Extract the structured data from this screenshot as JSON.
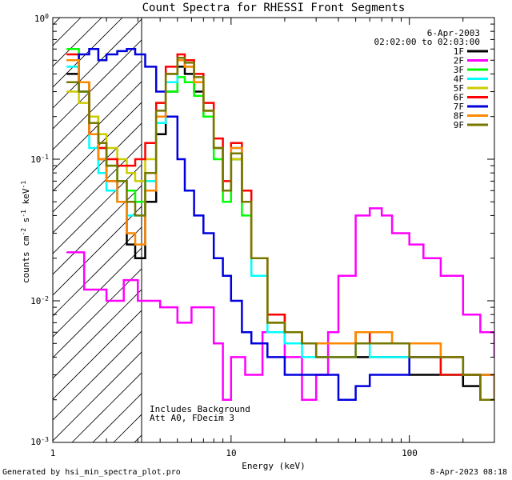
{
  "chart_data": {
    "type": "line",
    "title": "Count Spectra for RHESSI Front Segments",
    "xlabel": "Energy (keV)",
    "ylabel": "counts cm^-2 s^-1 keV^-1",
    "xscale": "log",
    "yscale": "log",
    "xlim": [
      1,
      300
    ],
    "ylim": [
      0.001,
      1
    ],
    "x_tick_labels": [
      "1",
      "10",
      "100"
    ],
    "y_tick_labels": [
      "10^0",
      "10^-1",
      "10^-2",
      "10^-3"
    ],
    "date": "6-Apr-2003",
    "time_range": "02:02:00 to 02:03:00",
    "annotations": [
      "Includes Background",
      "Att A0, FDecim 3"
    ],
    "hatched_region_keV": [
      1,
      3
    ],
    "series": [
      {
        "name": "1F",
        "color": "#000000",
        "x": [
          1.2,
          1.4,
          1.6,
          1.8,
          2.0,
          2.3,
          2.6,
          2.9,
          3.3,
          3.8,
          4.3,
          5.0,
          5.5,
          6.2,
          7.0,
          8.0,
          9.0,
          10.0,
          11.5,
          13.0,
          16.0,
          20.0,
          25.0,
          30.0,
          40.0,
          50.0,
          60.0,
          80.0,
          100.0,
          150.0,
          200.0,
          250.0,
          300.0
        ],
        "values": [
          0.4,
          0.3,
          0.15,
          0.1,
          0.07,
          0.05,
          0.025,
          0.02,
          0.05,
          0.15,
          0.3,
          0.45,
          0.4,
          0.3,
          0.2,
          0.12,
          0.06,
          0.1,
          0.05,
          0.02,
          0.008,
          0.006,
          0.005,
          0.004,
          0.004,
          0.004,
          0.004,
          0.004,
          0.003,
          0.003,
          0.0025,
          0.002,
          0.002
        ]
      },
      {
        "name": "2F",
        "color": "#ff00ff",
        "x": [
          1.2,
          1.5,
          2.0,
          2.5,
          3.0,
          4.0,
          5.0,
          6.0,
          8.0,
          9.0,
          10.0,
          12.0,
          15.0,
          20.0,
          25.0,
          30.0,
          35.0,
          40.0,
          50.0,
          60.0,
          70.0,
          80.0,
          100.0,
          120.0,
          150.0,
          200.0,
          250.0,
          300.0
        ],
        "values": [
          0.022,
          0.012,
          0.01,
          0.014,
          0.01,
          0.009,
          0.007,
          0.009,
          0.005,
          0.002,
          0.004,
          0.003,
          0.006,
          0.004,
          0.002,
          0.003,
          0.006,
          0.015,
          0.04,
          0.045,
          0.04,
          0.03,
          0.025,
          0.02,
          0.015,
          0.008,
          0.006,
          0.004
        ]
      },
      {
        "name": "3F",
        "color": "#00ff00",
        "x": [
          1.2,
          1.4,
          1.6,
          1.8,
          2.0,
          2.3,
          2.6,
          2.9,
          3.3,
          3.8,
          4.3,
          5.0,
          5.5,
          6.2,
          7.0,
          8.0,
          9.0,
          10.0,
          11.5,
          13.0,
          16.0,
          20.0,
          25.0,
          30.0,
          40.0,
          50.0,
          60.0,
          80.0,
          100.0,
          150.0,
          200.0,
          250.0,
          300.0
        ],
        "values": [
          0.6,
          0.35,
          0.2,
          0.12,
          0.09,
          0.07,
          0.06,
          0.05,
          0.07,
          0.2,
          0.3,
          0.38,
          0.35,
          0.28,
          0.2,
          0.1,
          0.05,
          0.1,
          0.04,
          0.015,
          0.007,
          0.006,
          0.005,
          0.005,
          0.005,
          0.006,
          0.005,
          0.005,
          0.004,
          0.003,
          0.003,
          0.002,
          0.002
        ]
      },
      {
        "name": "4F",
        "color": "#00ffff",
        "x": [
          1.2,
          1.4,
          1.6,
          1.8,
          2.0,
          2.3,
          2.6,
          2.9,
          3.3,
          3.8,
          4.3,
          5.0,
          5.5,
          6.2,
          7.0,
          8.0,
          9.0,
          10.0,
          11.5,
          13.0,
          16.0,
          20.0,
          25.0,
          30.0,
          40.0,
          50.0,
          60.0,
          80.0,
          100.0,
          150.0,
          200.0,
          250.0,
          300.0
        ],
        "values": [
          0.45,
          0.3,
          0.12,
          0.08,
          0.06,
          0.05,
          0.04,
          0.04,
          0.07,
          0.18,
          0.35,
          0.5,
          0.45,
          0.35,
          0.22,
          0.12,
          0.06,
          0.12,
          0.05,
          0.015,
          0.006,
          0.005,
          0.004,
          0.004,
          0.004,
          0.005,
          0.004,
          0.004,
          0.004,
          0.003,
          0.003,
          0.002,
          0.002
        ]
      },
      {
        "name": "5F",
        "color": "#cccc00",
        "x": [
          1.2,
          1.4,
          1.6,
          1.8,
          2.0,
          2.3,
          2.6,
          2.9,
          3.3,
          3.8,
          4.3,
          5.0,
          5.5,
          6.2,
          7.0,
          8.0,
          9.0,
          10.0,
          11.5,
          13.0,
          16.0,
          20.0,
          25.0,
          30.0,
          40.0,
          50.0,
          60.0,
          80.0,
          100.0,
          150.0,
          200.0,
          250.0,
          300.0
        ],
        "values": [
          0.3,
          0.25,
          0.2,
          0.15,
          0.12,
          0.1,
          0.08,
          0.07,
          0.1,
          0.25,
          0.4,
          0.5,
          0.45,
          0.35,
          0.22,
          0.12,
          0.06,
          0.1,
          0.05,
          0.02,
          0.008,
          0.006,
          0.005,
          0.005,
          0.005,
          0.006,
          0.006,
          0.005,
          0.005,
          0.004,
          0.003,
          0.003,
          0.002
        ]
      },
      {
        "name": "6F",
        "color": "#ff0000",
        "x": [
          1.2,
          1.4,
          1.6,
          1.8,
          2.0,
          2.3,
          2.6,
          2.9,
          3.3,
          3.8,
          4.3,
          5.0,
          5.5,
          6.2,
          7.0,
          8.0,
          9.0,
          10.0,
          11.5,
          13.0,
          16.0,
          20.0,
          25.0,
          30.0,
          40.0,
          50.0,
          60.0,
          80.0,
          100.0,
          150.0,
          200.0,
          250.0,
          300.0
        ],
        "values": [
          0.55,
          0.35,
          0.15,
          0.12,
          0.1,
          0.09,
          0.09,
          0.1,
          0.13,
          0.25,
          0.45,
          0.55,
          0.5,
          0.4,
          0.25,
          0.14,
          0.07,
          0.13,
          0.06,
          0.02,
          0.008,
          0.006,
          0.005,
          0.005,
          0.005,
          0.006,
          0.005,
          0.005,
          0.004,
          0.003,
          0.003,
          0.002,
          0.002
        ]
      },
      {
        "name": "7F",
        "color": "#0000dd",
        "x": [
          1.2,
          1.4,
          1.6,
          1.8,
          2.0,
          2.3,
          2.6,
          2.9,
          3.3,
          3.8,
          4.3,
          5.0,
          5.5,
          6.2,
          7.0,
          8.0,
          9.0,
          10.0,
          11.5,
          13.0,
          16.0,
          20.0,
          25.0,
          30.0,
          40.0,
          50.0,
          60.0,
          80.0,
          100.0,
          150.0,
          200.0,
          250.0,
          300.0
        ],
        "values": [
          0.35,
          0.55,
          0.6,
          0.5,
          0.55,
          0.58,
          0.6,
          0.55,
          0.45,
          0.3,
          0.2,
          0.1,
          0.06,
          0.04,
          0.03,
          0.02,
          0.015,
          0.01,
          0.006,
          0.005,
          0.004,
          0.003,
          0.003,
          0.003,
          0.002,
          0.0025,
          0.003,
          0.003,
          0.004,
          0.004,
          0.003,
          0.003,
          0.002
        ]
      },
      {
        "name": "8F",
        "color": "#ff8800",
        "x": [
          1.2,
          1.4,
          1.6,
          1.8,
          2.0,
          2.3,
          2.6,
          2.9,
          3.3,
          3.8,
          4.3,
          5.0,
          5.5,
          6.2,
          7.0,
          8.0,
          9.0,
          10.0,
          11.5,
          13.0,
          16.0,
          20.0,
          25.0,
          30.0,
          40.0,
          50.0,
          60.0,
          80.0,
          100.0,
          150.0,
          200.0,
          250.0,
          300.0
        ],
        "values": [
          0.5,
          0.35,
          0.15,
          0.1,
          0.07,
          0.05,
          0.03,
          0.025,
          0.06,
          0.2,
          0.4,
          0.5,
          0.45,
          0.35,
          0.22,
          0.12,
          0.06,
          0.12,
          0.05,
          0.02,
          0.007,
          0.006,
          0.005,
          0.005,
          0.005,
          0.006,
          0.006,
          0.005,
          0.005,
          0.004,
          0.003,
          0.003,
          0.002
        ]
      },
      {
        "name": "9F",
        "color": "#777700",
        "x": [
          1.2,
          1.4,
          1.6,
          1.8,
          2.0,
          2.3,
          2.6,
          2.9,
          3.3,
          3.8,
          4.3,
          5.0,
          5.5,
          6.2,
          7.0,
          8.0,
          9.0,
          10.0,
          11.5,
          13.0,
          16.0,
          20.0,
          25.0,
          30.0,
          40.0,
          50.0,
          60.0,
          80.0,
          100.0,
          150.0,
          200.0,
          250.0,
          300.0
        ],
        "values": [
          0.35,
          0.3,
          0.18,
          0.13,
          0.09,
          0.07,
          0.05,
          0.04,
          0.08,
          0.22,
          0.4,
          0.52,
          0.48,
          0.38,
          0.22,
          0.12,
          0.06,
          0.11,
          0.05,
          0.02,
          0.007,
          0.006,
          0.005,
          0.004,
          0.004,
          0.005,
          0.005,
          0.005,
          0.004,
          0.004,
          0.003,
          0.002,
          0.002
        ]
      }
    ]
  },
  "footer": {
    "left": "Generated by hsi_min_spectra_plot.pro",
    "right": "8-Apr-2023 08:18"
  }
}
